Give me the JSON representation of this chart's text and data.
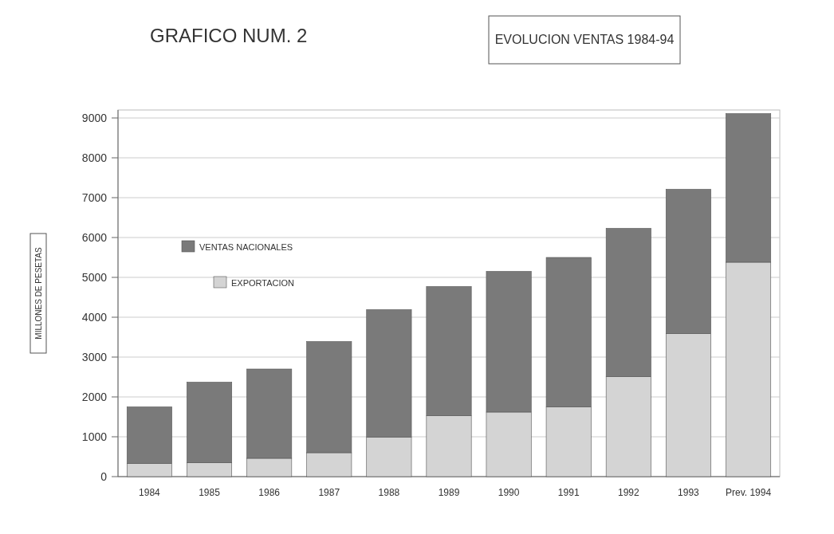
{
  "chart_data": {
    "type": "bar",
    "title": "GRAFICO NUM. 2",
    "subtitle": "EVOLUCION VENTAS 1984-94",
    "ylabel": "MILLONES DE PESETAS",
    "categories": [
      "1984",
      "1985",
      "1986",
      "1987",
      "1988",
      "1989",
      "1990",
      "1991",
      "1992",
      "1993",
      "Prev. 1994"
    ],
    "stacked": true,
    "series": [
      {
        "name": "EXPORTACION",
        "color": "#d4d4d4",
        "values": [
          330,
          350,
          460,
          600,
          990,
          1530,
          1620,
          1750,
          2510,
          3590,
          5380
        ]
      },
      {
        "name": "VENTAS NACIONALES",
        "color": "#7a7a7a",
        "values": [
          1420,
          2020,
          2240,
          2790,
          3200,
          3240,
          3530,
          3750,
          3720,
          3620,
          3730
        ]
      }
    ],
    "ylim": [
      0,
      9200
    ],
    "yticks": [
      0,
      1000,
      2000,
      3000,
      4000,
      5000,
      6000,
      7000,
      8000,
      9000
    ],
    "grid": "y",
    "legend": "left"
  }
}
